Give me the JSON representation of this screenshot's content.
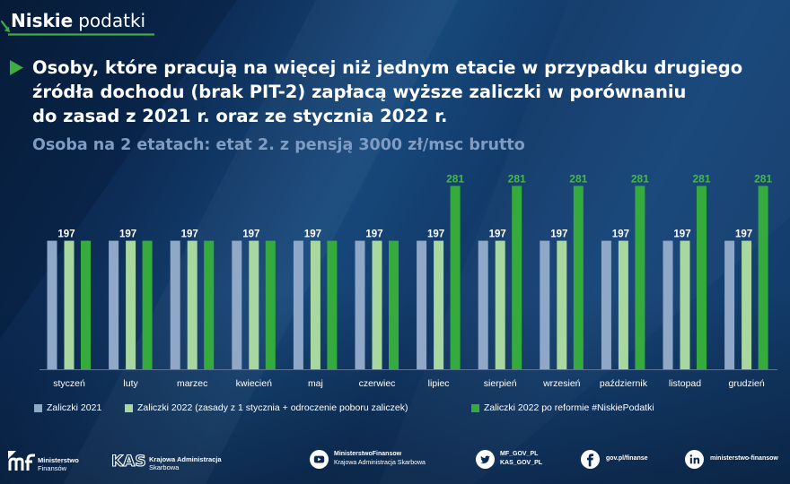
{
  "brand": {
    "bold": "Niskie",
    "regular": "podatki"
  },
  "colors": {
    "background": "#0c2a50",
    "accent_green": "#3dae3f",
    "subtitle": "#7f9dc2",
    "value_label": "#ffffff",
    "highlight_label": "#46b84a",
    "baseline": "#5d7496"
  },
  "chart_data": {
    "type": "bar",
    "title": "Osoby, które pracują na więcej niż jednym etacie w przypadku drugiego\nźródła dochodu (brak PIT-2) zapłacą wyższe zaliczki w porównaniu\ndo zasad z 2021 r. oraz ze stycznia 2022 r.",
    "subtitle": "Osoba na 2 etatach: etat 2. z pensją 3000 zł/msc brutto",
    "categories": [
      "styczeń",
      "luty",
      "marzec",
      "kwiecień",
      "maj",
      "czerwiec",
      "lipiec",
      "sierpień",
      "wrzesień",
      "październik",
      "listopad",
      "grudzień"
    ],
    "series": [
      {
        "name": "Zaliczki 2021",
        "color": "#8fa8c8",
        "values": [
          197,
          197,
          197,
          197,
          197,
          197,
          197,
          197,
          197,
          197,
          197,
          197
        ]
      },
      {
        "name": "Zaliczki 2022 (zasady z 1 stycznia + odroczenie poboru zaliczek)",
        "color": "#a8d7a0",
        "values": [
          197,
          197,
          197,
          197,
          197,
          197,
          197,
          197,
          197,
          197,
          197,
          197
        ]
      },
      {
        "name": "Zaliczki 2022 po reformie #NiskiePodatki",
        "color": "#35aa3d",
        "values": [
          197,
          197,
          197,
          197,
          197,
          197,
          281,
          281,
          281,
          281,
          281,
          281
        ]
      }
    ],
    "xlabel": "",
    "ylabel": "",
    "y_axis_visible": false,
    "grid": false,
    "legend": "bottom-left"
  },
  "footer": {
    "mf": {
      "line1": "Ministerstwo",
      "line2": "Finansów"
    },
    "kas": {
      "logo": "KAS",
      "line1": "Krajowa Administracja",
      "line2": "Skarbowa"
    },
    "youtube": {
      "icon": "youtube-icon",
      "line1": "MinisterstwoFinansow",
      "line2": "Krajowa Administracja Skarbowa"
    },
    "twitter": {
      "icon": "twitter-icon",
      "line1": "MF_GOV_PL",
      "line2": "KAS_GOV_PL"
    },
    "facebook": {
      "icon": "facebook-icon",
      "line1": "gov.pl/finanse"
    },
    "linkedin": {
      "icon": "linkedin-icon",
      "line1": "ministerstwo-finansow"
    }
  }
}
